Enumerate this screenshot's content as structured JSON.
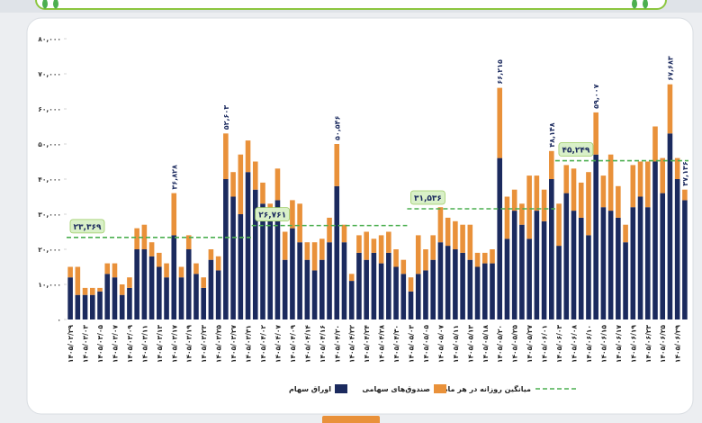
{
  "chart_data": {
    "type": "stacked_bar",
    "ylim": [
      0,
      80000
    ],
    "yticks": [
      {
        "value": 0,
        "label": "۰"
      },
      {
        "value": 10000,
        "label": "۱۰,۰۰۰"
      },
      {
        "value": 20000,
        "label": "۲۰,۰۰۰"
      },
      {
        "value": 30000,
        "label": "۳۰,۰۰۰"
      },
      {
        "value": 40000,
        "label": "۴۰,۰۰۰"
      },
      {
        "value": 50000,
        "label": "۵۰,۰۰۰"
      },
      {
        "value": 60000,
        "label": "۶۰,۰۰۰"
      },
      {
        "value": 70000,
        "label": "۷۰,۰۰۰"
      },
      {
        "value": 80000,
        "label": "۸۰,۰۰۰"
      }
    ],
    "categories": [
      "۱۴۰۵/۰۲/۲۹",
      null,
      "۱۴۰۵/۰۳/۰۳",
      null,
      "۱۴۰۵/۰۳/۰۵",
      null,
      "۱۴۰۵/۰۳/۰۷",
      null,
      "۱۴۰۵/۰۳/۰۹",
      null,
      "۱۴۰۵/۰۳/۱۱",
      null,
      "۱۴۰۵/۰۳/۱۳",
      null,
      "۱۴۰۵/۰۳/۱۷",
      null,
      "۱۴۰۵/۰۳/۱۹",
      null,
      "۱۴۰۵/۰۳/۲۳",
      null,
      "۱۴۰۵/۰۳/۲۵",
      null,
      "۱۴۰۵/۰۳/۲۷",
      null,
      "۱۴۰۵/۰۳/۳۱",
      null,
      "۱۴۰۵/۰۴/۰۲",
      null,
      "۱۴۰۵/۰۴/۰۷",
      null,
      "۱۴۰۵/۰۴/۰۹",
      null,
      "۱۴۰۵/۰۴/۱۴",
      null,
      "۱۴۰۵/۰۴/۱۶",
      null,
      "۱۴۰۵/۰۴/۲۰",
      null,
      "۱۴۰۵/۰۴/۲۲",
      null,
      "۱۴۰۵/۰۴/۲۴",
      null,
      "۱۴۰۵/۰۴/۲۸",
      null,
      "۱۴۰۵/۰۴/۳۰",
      null,
      "۱۴۰۵/۰۵/۰۳",
      null,
      "۱۴۰۵/۰۵/۰۵",
      null,
      "۱۴۰۵/۰۵/۰۷",
      null,
      "۱۴۰۵/۰۵/۱۱",
      null,
      "۱۴۰۵/۰۵/۱۳",
      null,
      "۱۴۰۵/۰۵/۱۸",
      null,
      "۱۴۰۵/۰۵/۲۰",
      null,
      "۱۴۰۵/۰۵/۲۵",
      null,
      "۱۴۰۵/۰۵/۲۷",
      null,
      "۱۴۰۵/۰۶/۰۱",
      null,
      "۱۴۰۵/۰۶/۰۳",
      null,
      "۱۴۰۵/۰۶/۰۸",
      null,
      "۱۴۰۵/۰۶/۱۰",
      null,
      "۱۴۰۵/۰۶/۱۵",
      null,
      "۱۴۰۵/۰۶/۱۷",
      null,
      "۱۴۰۵/۰۶/۱۹",
      null,
      "۱۴۰۵/۰۶/۲۳",
      null,
      "۱۴۰۵/۰۶/۲۵",
      null,
      "۱۴۰۵/۰۶/۲۹",
      null
    ],
    "series": [
      {
        "name": "اوراق سهام",
        "color": "#1b2a5e",
        "values": [
          12000,
          7000,
          7000,
          7000,
          8000,
          13000,
          12000,
          7000,
          9000,
          20000,
          20000,
          18000,
          15000,
          12000,
          24000,
          12000,
          20000,
          13000,
          9000,
          17000,
          14000,
          40000,
          35000,
          30000,
          42000,
          37000,
          33000,
          29000,
          34000,
          17000,
          26000,
          22000,
          17000,
          14000,
          17000,
          22000,
          38000,
          22000,
          11000,
          19000,
          17000,
          19000,
          16000,
          19000,
          15000,
          13000,
          8000,
          13000,
          14000,
          17000,
          22000,
          21000,
          20000,
          19000,
          17000,
          15000,
          16000,
          16000,
          46000,
          23000,
          31000,
          27000,
          23000,
          31000,
          28000,
          40000,
          21000,
          36000,
          31000,
          29000,
          24000,
          47000,
          32000,
          31000,
          29000,
          22000,
          32000,
          35000,
          32000,
          45000,
          36000,
          53000,
          40000,
          34000
        ]
      },
      {
        "name": "صندوق‌های سهامی",
        "color": "#e9913a",
        "values": [
          3000,
          8000,
          2000,
          2000,
          1000,
          3000,
          4000,
          3000,
          3000,
          6000,
          7000,
          4000,
          4000,
          4000,
          12000,
          3000,
          4000,
          3000,
          3000,
          3000,
          4000,
          13000,
          7000,
          17000,
          9000,
          8000,
          6000,
          4000,
          9000,
          8000,
          8000,
          11000,
          5000,
          8000,
          6000,
          7000,
          12000,
          5000,
          2000,
          5000,
          8000,
          4000,
          8000,
          6000,
          5000,
          4000,
          4000,
          11000,
          6000,
          7000,
          10000,
          8000,
          8000,
          8000,
          10000,
          4000,
          3000,
          4000,
          20000,
          12000,
          6000,
          6000,
          18000,
          10000,
          9000,
          8000,
          12000,
          8000,
          12000,
          10000,
          18000,
          12000,
          9000,
          16000,
          9000,
          5000,
          12000,
          10000,
          13000,
          10000,
          10000,
          14000,
          6000,
          3000
        ]
      }
    ],
    "averages_name": "میانگین روزانه در هر ماه",
    "averages_color": "#4caf50",
    "averages": [
      {
        "value": 23369,
        "label": "۲۳,۳۶۹",
        "from": 0,
        "to": 24
      },
      {
        "value": 26761,
        "label": "۲۶,۷۶۱",
        "from": 25,
        "to": 45
      },
      {
        "value": 31536,
        "label": "۳۱,۵۳۶",
        "from": 46,
        "to": 65
      },
      {
        "value": 45249,
        "label": "۴۵,۲۴۹",
        "from": 66,
        "to": 83
      }
    ],
    "annotations": [
      {
        "text": "۳۶,۸۲۸",
        "bar": 14
      },
      {
        "text": "۵۲,۶۰۳",
        "bar": 21
      },
      {
        "text": "۵۰,۵۴۶",
        "bar": 36
      },
      {
        "text": "۶۶,۲۱۵",
        "bar": 58
      },
      {
        "text": "۴۸,۱۴۸",
        "bar": 65
      },
      {
        "text": "۵۹,۰۰۷",
        "bar": 71
      },
      {
        "text": "۶۷,۶۸۳",
        "bar": 81
      },
      {
        "text": "۳۷,۱۳۶",
        "bar": 83
      }
    ]
  }
}
